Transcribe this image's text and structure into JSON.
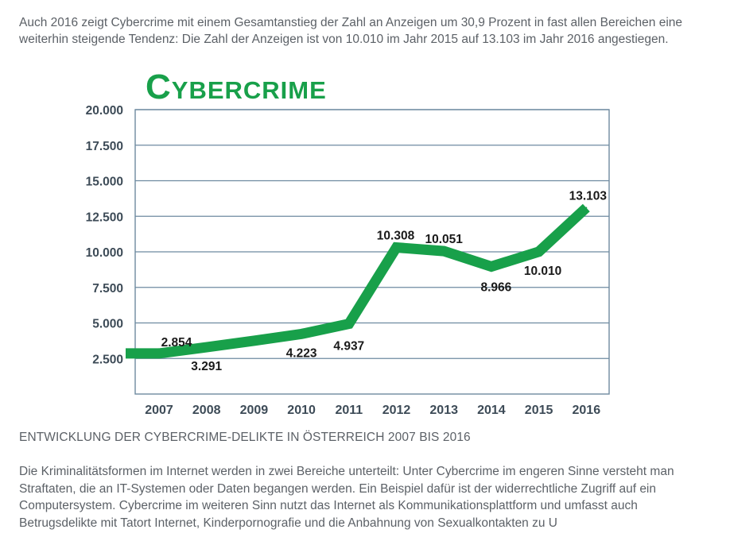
{
  "intro": "Auch 2016 zeigt Cybercrime mit einem Gesamtanstieg der Zahl an Anzeigen um 30,9 Prozent in fast allen Bereichen eine weiterhin steigende Tendenz: Die Zahl der Anzeigen ist von 10.010 im Jahr 2015 auf 13.103 im Jahr 2016 angestiegen.",
  "caption": "ENTWICKLUNG DER CYBERCRIME-DELIKTE IN ÖSTERREICH 2007 BIS 2016",
  "body_text": "Die Kriminalitätsformen im Internet werden in zwei Bereiche unterteilt: Unter Cybercrime im engeren Sinne versteht man Straftaten, die an IT-Systemen oder Daten begangen werden. Ein Beispiel dafür ist der widerrechtliche Zugriff auf ein Computersystem. Cybercrime im weiteren Sinn nutzt das Internet als Kommunikationsplattform und umfasst auch Betrugsdelikte mit Tatort Internet, Kinderpornografie und die Anbahnung von Sexualkontakten zu U",
  "chart_data": {
    "type": "line",
    "title": "Cybercrime",
    "xlabel": "",
    "ylabel": "",
    "categories": [
      "2007",
      "2008",
      "2009",
      "2010",
      "2011",
      "2012",
      "2013",
      "2014",
      "2015",
      "2016"
    ],
    "values": [
      2854,
      3291,
      3750,
      4223,
      4937,
      10308,
      10051,
      8966,
      10010,
      13103
    ],
    "data_labels": [
      "2.854",
      "3.291",
      "",
      "4.223",
      "4.937",
      "10.308",
      "10.051",
      "8.966",
      "10.010",
      "13.103"
    ],
    "y_ticks": [
      2500,
      5000,
      7500,
      10000,
      12500,
      15000,
      17500,
      20000
    ],
    "y_tick_labels": [
      "2.500",
      "5.000",
      "7.500",
      "10.000",
      "12.500",
      "15.000",
      "17.500",
      "20.000"
    ],
    "ylim": [
      0,
      20000
    ],
    "grid": true,
    "line_color": "#18a04a",
    "grid_color": "#6e8aa0",
    "title_color": "#18a04a"
  }
}
